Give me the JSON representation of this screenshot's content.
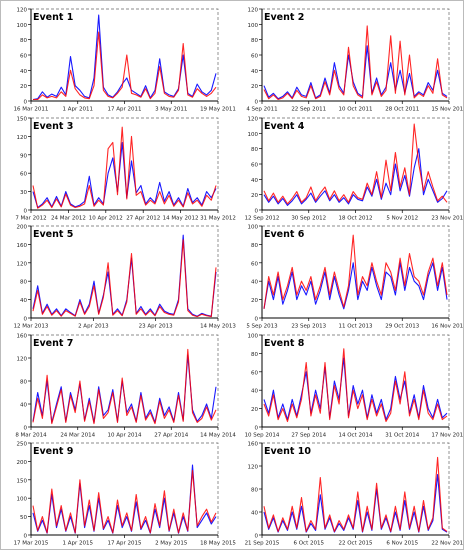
{
  "chart_data": [
    {
      "type": "line",
      "title": "Event 1",
      "ylim": [
        0,
        120
      ],
      "yticks": [
        0,
        20,
        40,
        60,
        80,
        100,
        120
      ],
      "xticks": [
        "16 Mar 2011",
        "1 Apr 2011",
        "17 Apr 2011",
        "3 May 2011",
        "19 May 2011"
      ],
      "series": [
        {
          "color": "#0000ff",
          "values": [
            2,
            3,
            12,
            5,
            9,
            6,
            18,
            8,
            58,
            20,
            14,
            6,
            4,
            30,
            112,
            18,
            8,
            5,
            12,
            22,
            30,
            14,
            10,
            6,
            20,
            4,
            14,
            55,
            12,
            8,
            6,
            16,
            60,
            10,
            6,
            22,
            12,
            8,
            14,
            36
          ]
        },
        {
          "color": "#ff0000",
          "values": [
            2,
            2,
            8,
            4,
            6,
            4,
            12,
            6,
            40,
            16,
            8,
            4,
            3,
            20,
            90,
            14,
            6,
            4,
            10,
            18,
            60,
            10,
            8,
            5,
            16,
            3,
            10,
            45,
            10,
            6,
            5,
            14,
            75,
            8,
            5,
            16,
            10,
            6,
            10,
            18
          ]
        }
      ]
    },
    {
      "type": "line",
      "title": "Event 2",
      "ylim": [
        0,
        120
      ],
      "yticks": [
        0,
        20,
        40,
        60,
        80,
        100,
        120
      ],
      "xticks": [
        "4 Sep 2011",
        "22 Sep 2011",
        "10 Oct 2011",
        "28 Oct 2011",
        "15 Nov 2011"
      ],
      "series": [
        {
          "color": "#0000ff",
          "values": [
            20,
            5,
            10,
            3,
            6,
            12,
            4,
            18,
            8,
            6,
            24,
            4,
            8,
            30,
            10,
            50,
            20,
            10,
            60,
            25,
            10,
            6,
            72,
            10,
            30,
            8,
            18,
            50,
            14,
            40,
            10,
            36,
            6,
            12,
            8,
            24,
            14,
            40,
            10,
            6
          ]
        },
        {
          "color": "#ff0000",
          "values": [
            15,
            3,
            8,
            2,
            4,
            10,
            3,
            14,
            6,
            4,
            20,
            3,
            6,
            25,
            8,
            40,
            16,
            8,
            70,
            20,
            8,
            4,
            98,
            8,
            25,
            6,
            14,
            85,
            10,
            78,
            8,
            60,
            4,
            10,
            6,
            20,
            10,
            55,
            8,
            4
          ]
        }
      ]
    },
    {
      "type": "line",
      "title": "Event 3",
      "ylim": [
        0,
        150
      ],
      "yticks": [
        0,
        30,
        60,
        90,
        120,
        150
      ],
      "xticks": [
        "7 Mar 2012",
        "24 Mar 2012",
        "10 Apr 2012",
        "27 Apr 2012",
        "14 May 2012",
        "31 May 2012"
      ],
      "series": [
        {
          "color": "#0000ff",
          "values": [
            30,
            4,
            10,
            20,
            5,
            22,
            6,
            30,
            10,
            5,
            8,
            14,
            55,
            8,
            20,
            10,
            60,
            85,
            30,
            110,
            20,
            80,
            28,
            40,
            10,
            20,
            12,
            45,
            14,
            30,
            8,
            20,
            6,
            35,
            12,
            20,
            8,
            30,
            20,
            35
          ]
        },
        {
          "color": "#ff0000",
          "values": [
            40,
            3,
            8,
            16,
            4,
            18,
            5,
            26,
            8,
            4,
            6,
            10,
            40,
            6,
            16,
            8,
            100,
            110,
            25,
            135,
            18,
            120,
            24,
            30,
            8,
            16,
            10,
            30,
            10,
            24,
            6,
            16,
            5,
            28,
            10,
            16,
            6,
            24,
            16,
            40
          ]
        }
      ]
    },
    {
      "type": "line",
      "title": "Event 4",
      "ylim": [
        0,
        120
      ],
      "yticks": [
        0,
        20,
        40,
        60,
        80,
        100,
        120
      ],
      "xticks": [
        "12 Sep 2012",
        "30 Sep 2012",
        "18 Oct 2012",
        "5 Nov 2012",
        "23 Nov 2012"
      ],
      "series": [
        {
          "color": "#0000ff",
          "values": [
            20,
            10,
            18,
            8,
            15,
            6,
            12,
            20,
            8,
            14,
            22,
            10,
            18,
            25,
            12,
            20,
            10,
            16,
            8,
            20,
            14,
            12,
            30,
            18,
            40,
            14,
            35,
            20,
            60,
            25,
            45,
            18,
            55,
            80,
            20,
            40,
            25,
            10,
            15,
            25
          ]
        },
        {
          "color": "#ff0000",
          "values": [
            25,
            12,
            22,
            10,
            18,
            8,
            15,
            24,
            10,
            16,
            30,
            12,
            22,
            30,
            14,
            25,
            12,
            20,
            10,
            24,
            16,
            14,
            35,
            20,
            50,
            16,
            65,
            25,
            75,
            30,
            55,
            20,
            112,
            60,
            25,
            50,
            30,
            12,
            18,
            10
          ]
        }
      ]
    },
    {
      "type": "line",
      "title": "Event 5",
      "ylim": [
        0,
        200
      ],
      "yticks": [
        0,
        40,
        80,
        120,
        160,
        200
      ],
      "xticks": [
        "12 Mar 2013",
        "2 Apr 2013",
        "23 Apr 2013",
        "14 May 2013"
      ],
      "series": [
        {
          "color": "#0000ff",
          "values": [
            20,
            70,
            10,
            30,
            8,
            20,
            5,
            20,
            12,
            5,
            40,
            10,
            30,
            80,
            10,
            50,
            100,
            8,
            20,
            6,
            40,
            130,
            10,
            25,
            8,
            20,
            6,
            30,
            15,
            10,
            8,
            40,
            180,
            20,
            8,
            4,
            10,
            6,
            4,
            100
          ]
        },
        {
          "color": "#ff0000",
          "values": [
            15,
            60,
            8,
            25,
            6,
            16,
            4,
            16,
            10,
            4,
            35,
            8,
            25,
            70,
            8,
            45,
            120,
            6,
            16,
            5,
            35,
            140,
            8,
            20,
            6,
            16,
            5,
            25,
            12,
            8,
            6,
            35,
            170,
            16,
            6,
            3,
            8,
            5,
            3,
            110
          ]
        }
      ]
    },
    {
      "type": "line",
      "title": "Event 6",
      "ylim": [
        0,
        100
      ],
      "yticks": [
        0,
        20,
        40,
        60,
        80,
        100
      ],
      "xticks": [
        "5 Sep 2013",
        "23 Sep 2013",
        "11 Oct 2013",
        "29 Oct 2013",
        "16 Nov 2013"
      ],
      "series": [
        {
          "color": "#0000ff",
          "values": [
            10,
            40,
            20,
            45,
            15,
            30,
            50,
            20,
            35,
            25,
            40,
            15,
            30,
            50,
            20,
            45,
            25,
            10,
            30,
            60,
            20,
            40,
            30,
            55,
            35,
            20,
            50,
            45,
            25,
            60,
            30,
            55,
            40,
            35,
            20,
            45,
            60,
            30,
            55,
            20
          ]
        },
        {
          "color": "#ff0000",
          "values": [
            10,
            45,
            25,
            50,
            20,
            35,
            55,
            25,
            40,
            30,
            45,
            20,
            35,
            55,
            25,
            50,
            30,
            12,
            35,
            90,
            25,
            45,
            35,
            60,
            40,
            25,
            60,
            50,
            30,
            65,
            35,
            70,
            45,
            40,
            25,
            50,
            65,
            35,
            60,
            25
          ]
        }
      ]
    },
    {
      "type": "line",
      "title": "Event 7",
      "ylim": [
        0,
        160
      ],
      "yticks": [
        0,
        40,
        80,
        120,
        160
      ],
      "xticks": [
        "8 Mar 2014",
        "24 Mar 2014",
        "10 Apr 2014",
        "27 Apr 2014",
        "14 May 2014"
      ],
      "series": [
        {
          "color": "#0000ff",
          "values": [
            10,
            60,
            20,
            80,
            8,
            40,
            70,
            10,
            60,
            30,
            75,
            12,
            50,
            8,
            70,
            20,
            30,
            65,
            10,
            80,
            25,
            40,
            10,
            60,
            15,
            30,
            8,
            50,
            20,
            35,
            10,
            60,
            12,
            125,
            30,
            10,
            20,
            40,
            15,
            70
          ]
        },
        {
          "color": "#ff0000",
          "values": [
            8,
            50,
            15,
            90,
            6,
            35,
            65,
            8,
            55,
            25,
            80,
            10,
            45,
            6,
            65,
            15,
            25,
            60,
            8,
            85,
            20,
            35,
            8,
            55,
            12,
            25,
            6,
            45,
            15,
            30,
            8,
            55,
            10,
            135,
            25,
            8,
            15,
            35,
            12,
            30
          ]
        }
      ]
    },
    {
      "type": "line",
      "title": "Event 8",
      "ylim": [
        0,
        100
      ],
      "yticks": [
        0,
        20,
        40,
        60,
        80,
        100
      ],
      "xticks": [
        "10 Sep 2014",
        "27 Sep 2014",
        "14 Oct 2014",
        "31 Oct 2014",
        "17 Nov 2014"
      ],
      "series": [
        {
          "color": "#0000ff",
          "values": [
            30,
            15,
            40,
            10,
            25,
            8,
            30,
            12,
            35,
            60,
            15,
            40,
            20,
            65,
            10,
            50,
            30,
            75,
            12,
            45,
            25,
            40,
            10,
            35,
            15,
            30,
            8,
            20,
            55,
            30,
            50,
            15,
            35,
            10,
            45,
            20,
            10,
            30,
            10,
            15
          ]
        },
        {
          "color": "#ff0000",
          "values": [
            25,
            12,
            35,
            8,
            20,
            6,
            25,
            10,
            30,
            70,
            12,
            35,
            15,
            70,
            8,
            45,
            25,
            85,
            10,
            40,
            20,
            35,
            8,
            30,
            12,
            25,
            6,
            15,
            50,
            25,
            60,
            12,
            30,
            8,
            40,
            15,
            8,
            25,
            8,
            12
          ]
        }
      ]
    },
    {
      "type": "line",
      "title": "Event 9",
      "ylim": [
        0,
        250
      ],
      "yticks": [
        0,
        50,
        100,
        150,
        200,
        250
      ],
      "xticks": [
        "17 Mar 2015",
        "1 Apr 2015",
        "17 Apr 2015",
        "2 May 2015",
        "18 May 2015"
      ],
      "series": [
        {
          "color": "#0000ff",
          "values": [
            60,
            10,
            40,
            5,
            110,
            20,
            70,
            10,
            50,
            5,
            140,
            20,
            80,
            10,
            100,
            15,
            40,
            5,
            80,
            20,
            50,
            10,
            90,
            15,
            40,
            5,
            70,
            20,
            100,
            10,
            60,
            5,
            50,
            10,
            190,
            20,
            40,
            60,
            30,
            50
          ]
        },
        {
          "color": "#ff0000",
          "values": [
            80,
            12,
            50,
            6,
            125,
            25,
            80,
            12,
            60,
            6,
            150,
            25,
            95,
            12,
            115,
            18,
            50,
            6,
            95,
            25,
            60,
            12,
            110,
            18,
            50,
            6,
            85,
            25,
            120,
            12,
            70,
            6,
            60,
            12,
            175,
            25,
            50,
            70,
            35,
            60
          ]
        }
      ]
    },
    {
      "type": "line",
      "title": "Event 10",
      "ylim": [
        0,
        160
      ],
      "yticks": [
        0,
        40,
        80,
        120,
        160
      ],
      "xticks": [
        "21 Sep 2015",
        "6 Oct 2015",
        "22 Oct 2015",
        "6 Nov 2015",
        "22 Nov 2015"
      ],
      "series": [
        {
          "color": "#0000ff",
          "values": [
            40,
            10,
            30,
            5,
            25,
            8,
            40,
            10,
            50,
            5,
            20,
            8,
            70,
            10,
            30,
            5,
            20,
            8,
            30,
            10,
            60,
            5,
            40,
            8,
            80,
            10,
            30,
            5,
            40,
            8,
            60,
            10,
            40,
            5,
            50,
            8,
            25,
            105,
            10,
            5
          ]
        },
        {
          "color": "#ff0000",
          "values": [
            50,
            12,
            35,
            6,
            30,
            10,
            50,
            12,
            65,
            6,
            25,
            10,
            100,
            12,
            35,
            6,
            25,
            10,
            35,
            12,
            75,
            6,
            50,
            10,
            90,
            12,
            35,
            6,
            50,
            10,
            75,
            12,
            50,
            6,
            60,
            10,
            30,
            135,
            12,
            6
          ]
        }
      ]
    }
  ]
}
